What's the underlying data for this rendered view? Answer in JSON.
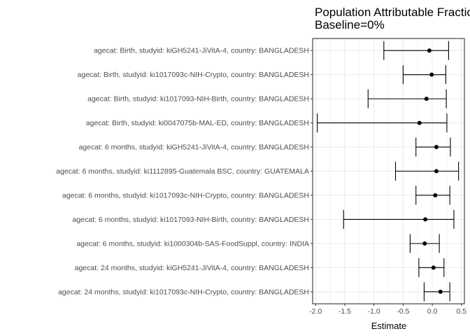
{
  "chart_data": {
    "type": "forest",
    "title_lines": [
      "Population Attributable Fraction",
      "Baseline=0%"
    ],
    "xlabel": "Estimate",
    "xlim": [
      -2.05,
      0.55
    ],
    "x_ticks": [
      -2.0,
      -1.5,
      -1.0,
      -0.5,
      0.0,
      0.5
    ],
    "x_tick_labels": [
      "-2.0",
      "-1.5",
      "-1.0",
      "-0.5",
      "0.0",
      "0.5"
    ],
    "grid": true,
    "colors": {
      "background": "#ffffff",
      "grid": "#ebebeb",
      "border": "#333333",
      "marks": "#000000"
    },
    "rows": [
      {
        "label": "agecat: Birth, studyid: kiGH5241-JiVitA-4, country: BANGLADESH",
        "estimate": -0.05,
        "lower": -0.83,
        "upper": 0.28
      },
      {
        "label": "agecat: Birth, studyid: ki1017093c-NIH-Crypto, country: BANGLADESH",
        "estimate": -0.01,
        "lower": -0.5,
        "upper": 0.23
      },
      {
        "label": "agecat: Birth, studyid: ki1017093-NIH-Birth, country: BANGLADESH",
        "estimate": -0.1,
        "lower": -1.1,
        "upper": 0.24
      },
      {
        "label": "agecat: Birth, studyid: ki0047075b-MAL-ED, country: BANGLADESH",
        "estimate": -0.22,
        "lower": -1.97,
        "upper": 0.25
      },
      {
        "label": "agecat: 6 months, studyid: kiGH5241-JiVitA-4, country: BANGLADESH",
        "estimate": 0.07,
        "lower": -0.28,
        "upper": 0.31
      },
      {
        "label": "agecat: 6 months, studyid: ki1112895-Guatemala BSC, country: GUATEMALA",
        "estimate": 0.07,
        "lower": -0.63,
        "upper": 0.45
      },
      {
        "label": "agecat: 6 months, studyid: ki1017093c-NIH-Crypto, country: BANGLADESH",
        "estimate": 0.05,
        "lower": -0.28,
        "upper": 0.3
      },
      {
        "label": "agecat: 6 months, studyid: ki1017093-NIH-Birth, country: BANGLADESH",
        "estimate": -0.12,
        "lower": -1.52,
        "upper": 0.37
      },
      {
        "label": "agecat: 6 months, studyid: ki1000304b-SAS-FoodSuppl, country: INDIA",
        "estimate": -0.13,
        "lower": -0.38,
        "upper": 0.12
      },
      {
        "label": "agecat: 24 months, studyid: kiGH5241-JiVitA-4, country: BANGLADESH",
        "estimate": 0.02,
        "lower": -0.23,
        "upper": 0.2
      },
      {
        "label": "agecat: 24 months, studyid: ki1017093c-NIH-Crypto, country: BANGLADESH",
        "estimate": 0.14,
        "lower": -0.14,
        "upper": 0.3
      }
    ]
  }
}
